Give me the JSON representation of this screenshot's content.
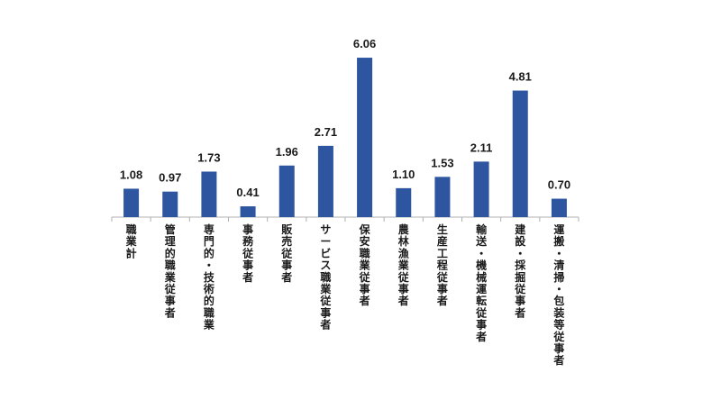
{
  "chart_data": {
    "type": "bar",
    "title": "",
    "xlabel": "",
    "ylabel": "",
    "ylim": [
      0,
      6.5
    ],
    "grid": false,
    "legend": "none",
    "categories": [
      "職業計",
      "管理的職業従事者",
      "専門的・技術的職業",
      "事務従事者",
      "販売従事者",
      "サービス職業従事者",
      "保安職業従事者",
      "農林漁業従事者",
      "生産工程従事者",
      "輸送・機械運転従事者",
      "建設・採掘従事者",
      "運搬・清掃・包装等従事者"
    ],
    "values": [
      1.08,
      0.97,
      1.73,
      0.41,
      1.96,
      2.71,
      6.06,
      1.1,
      1.53,
      2.11,
      4.81,
      0.7
    ],
    "labels": [
      "1.08",
      "0.97",
      "1.73",
      "0.41",
      "1.96",
      "2.71",
      "6.06",
      "1.10",
      "1.53",
      "2.11",
      "4.81",
      "0.70"
    ],
    "colors": {
      "bar": "#2E55A0",
      "axis": "#b0b0b0",
      "text": "#1a1a1a"
    }
  }
}
